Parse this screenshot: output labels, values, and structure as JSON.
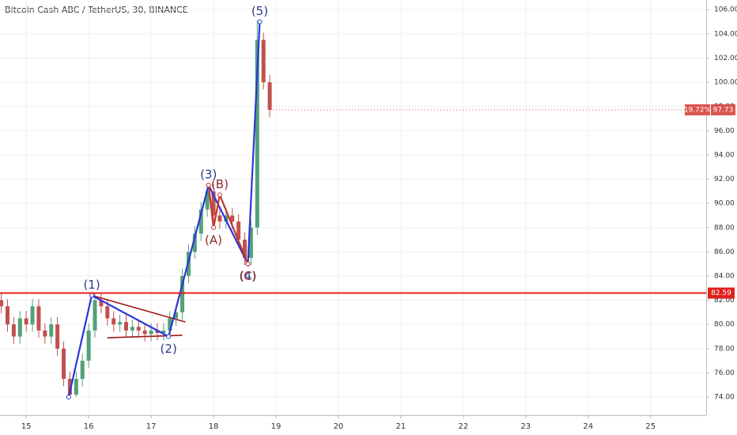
{
  "chart_data": {
    "type": "candlestick",
    "title": "Bitcoin Cash ABC / TetherUS, 30, BINANCE",
    "up_color": "#53a07a",
    "down_color": "#c0504d",
    "x": [
      14.6,
      14.7,
      14.8,
      14.9,
      15.0,
      15.1,
      15.2,
      15.3,
      15.4,
      15.5,
      15.6,
      15.7,
      15.8,
      15.9,
      16.0,
      16.1,
      16.2,
      16.3,
      16.4,
      16.5,
      16.6,
      16.7,
      16.8,
      16.9,
      17.0,
      17.1,
      17.2,
      17.3,
      17.4,
      17.5,
      17.6,
      17.7,
      17.8,
      17.9,
      18.0,
      18.1,
      18.2,
      18.3,
      18.4,
      18.5,
      18.6,
      18.7,
      18.8,
      18.9
    ],
    "open": [
      82,
      81.5,
      80,
      79,
      80.5,
      80,
      81.5,
      79.5,
      79,
      80,
      78,
      75.5,
      74.2,
      75.5,
      77,
      79.5,
      82,
      81.5,
      80.5,
      80,
      80.2,
      79.5,
      79.8,
      79.5,
      79.2,
      79.5,
      79.3,
      79.5,
      80.5,
      81,
      84,
      86,
      87.5,
      89.5,
      91,
      89,
      88.5,
      89,
      88.5,
      87,
      85.5,
      88,
      103.5,
      100
    ],
    "high": [
      82.6,
      82.1,
      80.6,
      81.1,
      81.1,
      82.1,
      82.1,
      80.1,
      80.6,
      80.6,
      78.6,
      76.1,
      76.1,
      77.6,
      80.1,
      82.6,
      82.6,
      82.1,
      81.1,
      80.8,
      80.8,
      80.4,
      80.4,
      80.1,
      80.1,
      80.1,
      80.1,
      81.1,
      81.6,
      84.6,
      86.6,
      88.1,
      90.1,
      91.6,
      91.6,
      89.6,
      89.6,
      89.6,
      89.1,
      87.6,
      88.6,
      105.1,
      104.1,
      100.6
    ],
    "low": [
      80.9,
      79.4,
      78.4,
      78.4,
      79.4,
      79.4,
      78.9,
      78.4,
      78.4,
      77.4,
      74.9,
      73.9,
      74.0,
      74.9,
      76.4,
      78.9,
      80.9,
      79.9,
      79.4,
      79.4,
      78.9,
      78.9,
      78.9,
      78.6,
      78.6,
      78.7,
      78.7,
      78.9,
      79.9,
      80.4,
      83.4,
      85.4,
      86.9,
      88.9,
      88.4,
      87.9,
      87.9,
      87.9,
      86.4,
      84.9,
      84.9,
      87.4,
      99.4,
      97.1
    ],
    "close": [
      81.5,
      80,
      79,
      80.5,
      80,
      81.5,
      79.5,
      79,
      80,
      78,
      75.5,
      74.2,
      75.5,
      77,
      79.5,
      82,
      81.5,
      80.5,
      80,
      80.2,
      79.5,
      79.8,
      79.5,
      79.2,
      79.5,
      79.3,
      79.5,
      80.5,
      81,
      84,
      86,
      87.5,
      89.5,
      91,
      89,
      88.5,
      89,
      88.5,
      87,
      85.5,
      88,
      103.5,
      100,
      97.73
    ],
    "xlim": [
      14.58,
      25.89
    ],
    "ylim": [
      72.5,
      106.8
    ],
    "xticks": [
      15,
      16,
      17,
      18,
      19,
      20,
      21,
      22,
      23,
      24,
      25
    ],
    "yticks": [
      {
        "value": 74,
        "label": "74.00"
      },
      {
        "value": 76,
        "label": "76.00"
      },
      {
        "value": 78,
        "label": "78.00"
      },
      {
        "value": 80,
        "label": "80.00"
      },
      {
        "value": 82,
        "label": "82.00"
      },
      {
        "value": 84,
        "label": "84.00"
      },
      {
        "value": 86,
        "label": "86.00"
      },
      {
        "value": 88,
        "label": "88.00"
      },
      {
        "value": 90,
        "label": "90.00"
      },
      {
        "value": 92,
        "label": "92.00"
      },
      {
        "value": 94,
        "label": "94.00"
      },
      {
        "value": 96,
        "label": "96.00"
      },
      {
        "value": 98,
        "label": "98.00"
      },
      {
        "value": 100,
        "label": "100.00"
      },
      {
        "value": 102,
        "label": "102.00"
      },
      {
        "value": 104,
        "label": "104.00"
      },
      {
        "value": 106,
        "label": "106.00"
      }
    ],
    "grid": true,
    "horizontal_line": {
      "value": 82.59,
      "label": "82.59",
      "color": "#e0201b"
    },
    "last_price": {
      "value": 97.73,
      "label": "97.73",
      "change": "19.72%",
      "color": "#d9534f"
    },
    "waves": [
      {
        "color": "#2a36d8",
        "label_color": "#2b3a8f",
        "x": [
          15.68,
          16.05,
          17.28,
          17.92,
          18.55,
          18.74
        ],
        "y": [
          74,
          82.4,
          79,
          91.5,
          85,
          105
        ],
        "labels": [
          null,
          "(1)",
          "(2)",
          "(3)",
          "(4)",
          "(5)"
        ],
        "positions": [
          null,
          "above",
          "below",
          "above",
          "below",
          "above"
        ]
      },
      {
        "color": "#c0392b",
        "label_color": "#8e2a2a",
        "x": [
          17.92,
          18.0,
          18.1,
          18.55
        ],
        "y": [
          91.5,
          88,
          90.7,
          85
        ],
        "labels": [
          null,
          "(A)",
          "(B)",
          "(C)"
        ],
        "positions": [
          null,
          "below",
          "above",
          "below"
        ]
      }
    ],
    "trendlines": [
      {
        "color": "#a01818",
        "x": [
          16.05,
          17.55
        ],
        "y": [
          82.4,
          80.2
        ]
      },
      {
        "color": "#a01818",
        "x": [
          16.3,
          17.5
        ],
        "y": [
          78.9,
          79.1
        ]
      }
    ]
  }
}
